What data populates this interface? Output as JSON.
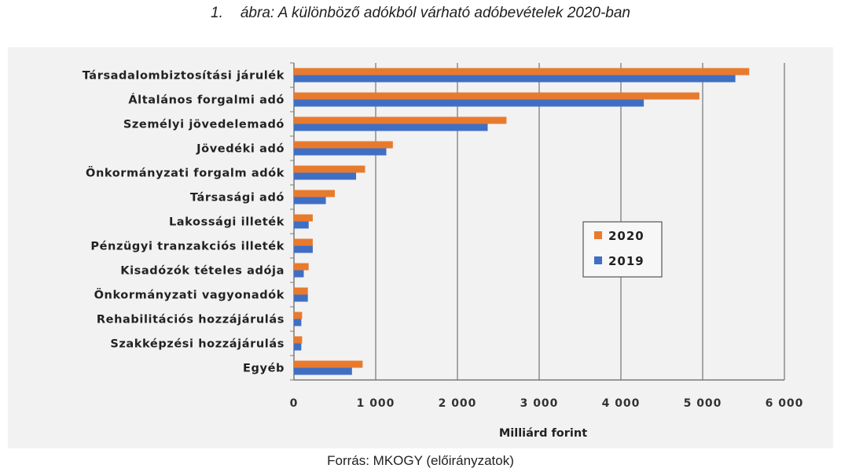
{
  "figure": {
    "number": "1.",
    "title": "ábra: A különböző adókból várható adóbevételek 2020-ban",
    "source": "Forrás: MKOGY (előirányzatok)"
  },
  "colors": {
    "s2020": "#e87a2e",
    "s2019": "#3f6fc4",
    "grid": "#8c8c8c",
    "panel": "#f2f2f2"
  },
  "chart_data": {
    "type": "bar",
    "orientation": "horizontal",
    "categories": [
      "Társadalombiztosítási járulék",
      "Általános forgalmi adó",
      "Személyi jövedelemadó",
      "Jövedéki adó",
      "Önkormányzati forgalm adók",
      "Társasági adó",
      "Lakossági illeték",
      "Pénzügyi tranzakciós illeték",
      "Kisadózók tételes adója",
      "Önkormányzati vagyonadók",
      "Rehabilitációs hozzájárulás",
      "Szakképzési hozzájárulás",
      "Egyéb"
    ],
    "series": [
      {
        "name": "2020",
        "values": [
          5570,
          4960,
          2600,
          1210,
          870,
          500,
          230,
          230,
          180,
          170,
          100,
          100,
          840
        ]
      },
      {
        "name": "2019",
        "values": [
          5400,
          4280,
          2370,
          1130,
          760,
          390,
          180,
          230,
          120,
          170,
          90,
          90,
          710
        ]
      }
    ],
    "xlabel": "Milliárd forint",
    "xlim": [
      0,
      6000
    ],
    "xticks": [
      0,
      1000,
      2000,
      3000,
      4000,
      5000,
      6000
    ],
    "xtick_labels": [
      "0",
      "1 000",
      "2 000",
      "3 000",
      "4 000",
      "5 000",
      "6 000"
    ],
    "grid": "vertical",
    "legend_position": "center-right"
  }
}
